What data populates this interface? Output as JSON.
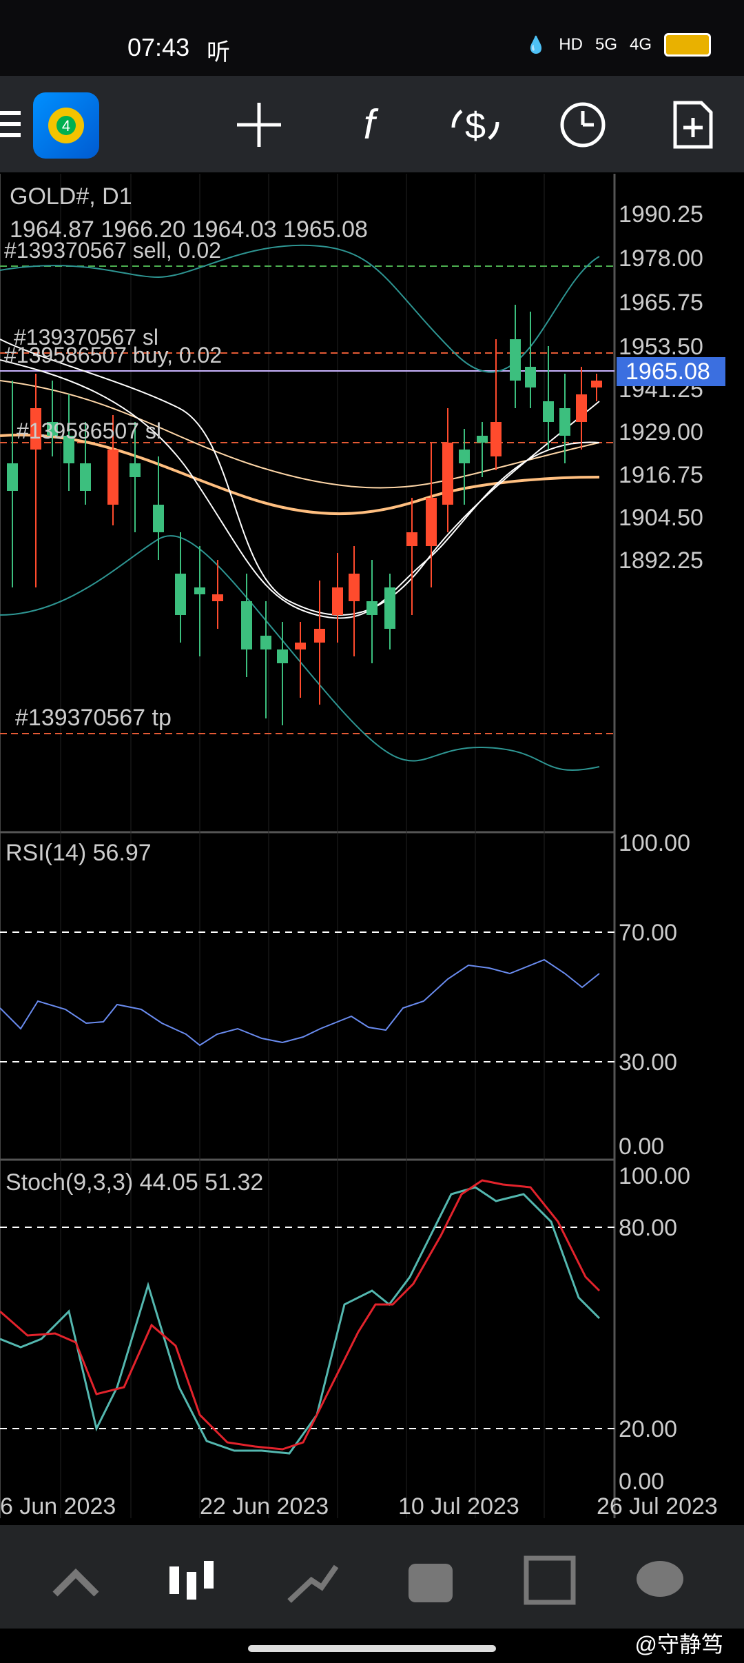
{
  "status_bar": {
    "time": "07:43",
    "carrier_note": "听",
    "hd_label": "HD",
    "sig1": "5G",
    "sig2": "4G"
  },
  "toolbar": {
    "icons": [
      "menu-icon",
      "app-logo",
      "crosshair-icon",
      "function-icon",
      "trade-icon",
      "clock-icon",
      "new-order-icon"
    ]
  },
  "chart": {
    "symbol": "GOLD#, D1",
    "ohlc": "1964.87 1966.20 1964.03 1965.08",
    "orders": [
      "#139370567 sell, 0.02",
      "#139370567 sl",
      "#139586507 buy, 0.02",
      "#139586507 sl",
      "#139370567 tp"
    ],
    "price_badge": "1965.08",
    "price_ticks": [
      "1990.25",
      "1978.00",
      "1965.75",
      "1953.50",
      "1941.25",
      "1929.00",
      "1916.75",
      "1904.50",
      "1892.25"
    ],
    "dates": [
      "6 Jun 2023",
      "22 Jun 2023",
      "10 Jul 2023",
      "26 Jul 2023"
    ],
    "rsi_label": "RSI(14) 56.97",
    "rsi_ticks": [
      "100.00",
      "70.00",
      "30.00",
      "0.00"
    ],
    "stoch_label": "Stoch(9,3,3) 44.05 51.32",
    "stoch_ticks": [
      "100.00",
      "80.00",
      "20.00",
      "0.00"
    ]
  },
  "colors": {
    "bull": "#3cbf7e",
    "bear": "#ff4b2d",
    "badge": "#3b6fe0",
    "rsi": "#6a8cf0",
    "stoch_main": "#54b8b0",
    "stoch_signal": "#e3232c"
  },
  "bottom_nav": {
    "items": [
      "quotes-icon",
      "chart-icon",
      "trade-icon",
      "history-icon",
      "news-icon",
      "messages-icon"
    ]
  },
  "watermark": "@守静笃"
}
